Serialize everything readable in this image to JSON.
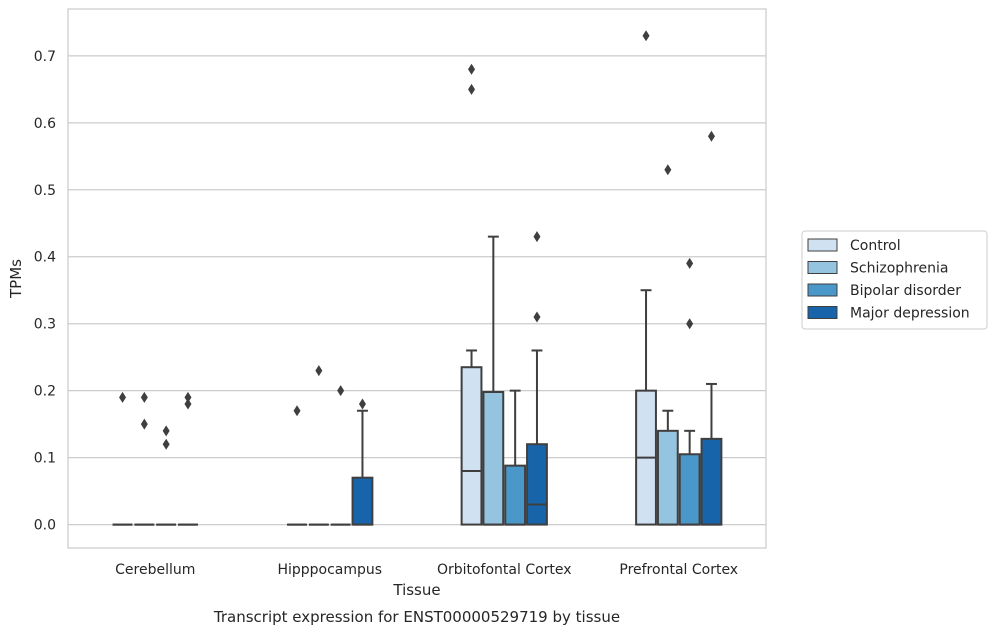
{
  "chart_data": {
    "type": "box",
    "caption": "Transcript expression for ENST00000529719 by tissue",
    "xlabel": "Tissue",
    "ylabel": "TPMs",
    "ylim": [
      -0.035,
      0.77
    ],
    "yticks": [
      0.0,
      0.1,
      0.2,
      0.3,
      0.4,
      0.5,
      0.6,
      0.7
    ],
    "ytick_labels": [
      "0.0",
      "0.1",
      "0.2",
      "0.3",
      "0.4",
      "0.5",
      "0.6",
      "0.7"
    ],
    "grid": true,
    "legend_position": "right",
    "categories": [
      "Cerebellum",
      "Hipppocampus",
      "Orbitofontal Cortex",
      "Prefrontal Cortex"
    ],
    "series": [
      {
        "name": "Control",
        "color": "#d0e1f2",
        "boxes": [
          {
            "q1": 0.0,
            "median": 0.0,
            "q3": 0.0,
            "whisker_low": 0.0,
            "whisker_high": 0.0,
            "outliers": [
              0.19
            ]
          },
          {
            "q1": 0.0,
            "median": 0.0,
            "q3": 0.0,
            "whisker_low": 0.0,
            "whisker_high": 0.0,
            "outliers": [
              0.17
            ]
          },
          {
            "q1": 0.0,
            "median": 0.08,
            "q3": 0.235,
            "whisker_low": 0.0,
            "whisker_high": 0.26,
            "outliers": [
              0.65,
              0.68
            ]
          },
          {
            "q1": 0.0,
            "median": 0.1,
            "q3": 0.2,
            "whisker_low": 0.0,
            "whisker_high": 0.35,
            "outliers": [
              0.73
            ]
          }
        ]
      },
      {
        "name": "Schizophrenia",
        "color": "#94c4df",
        "boxes": [
          {
            "q1": 0.0,
            "median": 0.0,
            "q3": 0.0,
            "whisker_low": 0.0,
            "whisker_high": 0.0,
            "outliers": [
              0.15,
              0.19
            ]
          },
          {
            "q1": 0.0,
            "median": 0.0,
            "q3": 0.0,
            "whisker_low": 0.0,
            "whisker_high": 0.0,
            "outliers": [
              0.23
            ]
          },
          {
            "q1": 0.0,
            "median": 0.0,
            "q3": 0.198,
            "whisker_low": 0.0,
            "whisker_high": 0.43,
            "outliers": []
          },
          {
            "q1": 0.0,
            "median": 0.0,
            "q3": 0.14,
            "whisker_low": 0.0,
            "whisker_high": 0.17,
            "outliers": [
              0.53
            ]
          }
        ]
      },
      {
        "name": "Bipolar disorder",
        "color": "#4a98c9",
        "boxes": [
          {
            "q1": 0.0,
            "median": 0.0,
            "q3": 0.0,
            "whisker_low": 0.0,
            "whisker_high": 0.0,
            "outliers": [
              0.12,
              0.14
            ]
          },
          {
            "q1": 0.0,
            "median": 0.0,
            "q3": 0.0,
            "whisker_low": 0.0,
            "whisker_high": 0.0,
            "outliers": [
              0.2
            ]
          },
          {
            "q1": 0.0,
            "median": 0.0,
            "q3": 0.088,
            "whisker_low": 0.0,
            "whisker_high": 0.2,
            "outliers": []
          },
          {
            "q1": 0.0,
            "median": 0.0,
            "q3": 0.105,
            "whisker_low": 0.0,
            "whisker_high": 0.14,
            "outliers": [
              0.3,
              0.39
            ]
          }
        ]
      },
      {
        "name": "Major depression",
        "color": "#1764ab",
        "boxes": [
          {
            "q1": 0.0,
            "median": 0.0,
            "q3": 0.0,
            "whisker_low": 0.0,
            "whisker_high": 0.0,
            "outliers": [
              0.18,
              0.19
            ]
          },
          {
            "q1": 0.0,
            "median": 0.0,
            "q3": 0.07,
            "whisker_low": 0.0,
            "whisker_high": 0.17,
            "outliers": [
              0.18
            ]
          },
          {
            "q1": 0.0,
            "median": 0.03,
            "q3": 0.12,
            "whisker_low": 0.0,
            "whisker_high": 0.26,
            "outliers": [
              0.31,
              0.43
            ]
          },
          {
            "q1": 0.0,
            "median": 0.0,
            "q3": 0.128,
            "whisker_low": 0.0,
            "whisker_high": 0.21,
            "outliers": [
              0.58
            ]
          }
        ]
      }
    ]
  }
}
